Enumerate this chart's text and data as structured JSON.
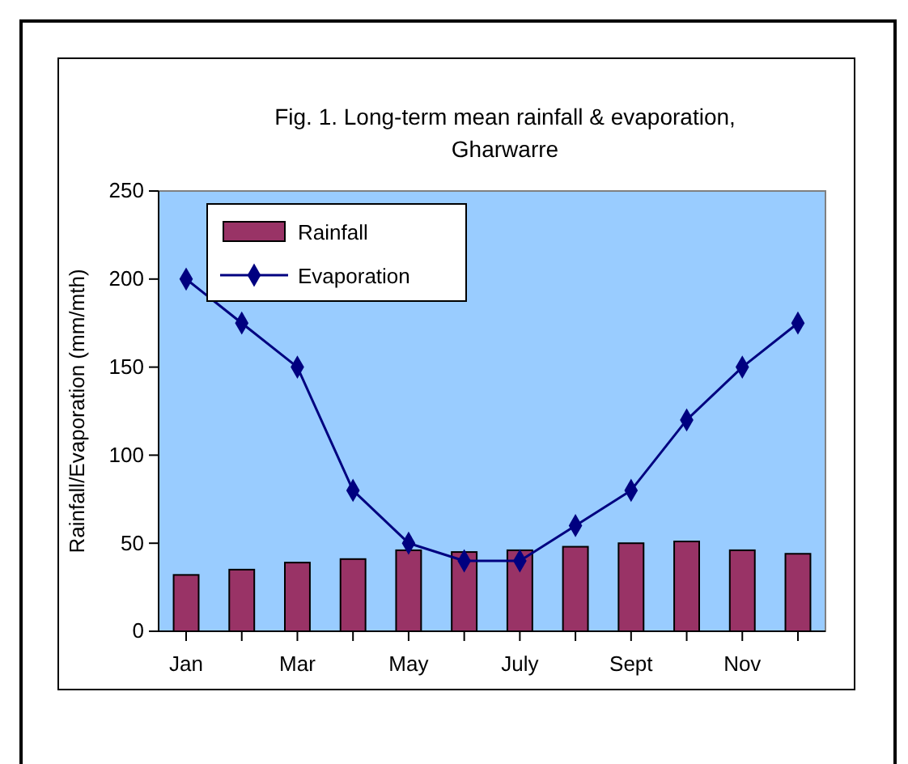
{
  "chart_data": {
    "type": "bar",
    "title": "Fig. 1.  Long-term mean rainfall & evaporation, Gharwarre",
    "ylabel": "Rainfall/Evaporation (mm/mth)",
    "categories": [
      "Jan",
      null,
      "Mar",
      null,
      "May",
      null,
      "July",
      null,
      "Sept",
      null,
      "Nov",
      null
    ],
    "series": [
      {
        "name": "Rainfall",
        "color": "#993366",
        "values": [
          32,
          35,
          39,
          41,
          46,
          45,
          46,
          48,
          50,
          51,
          46,
          44
        ]
      },
      {
        "name": "Evaporation",
        "type": "line",
        "color": "#000080",
        "marker": "diamond",
        "values": [
          200,
          175,
          150,
          80,
          50,
          40,
          40,
          60,
          80,
          120,
          150,
          175
        ]
      }
    ],
    "ylim": [
      0,
      250
    ],
    "yticks": [
      0,
      50,
      100,
      150,
      200,
      250
    ],
    "grid": false,
    "legend": "top left"
  }
}
